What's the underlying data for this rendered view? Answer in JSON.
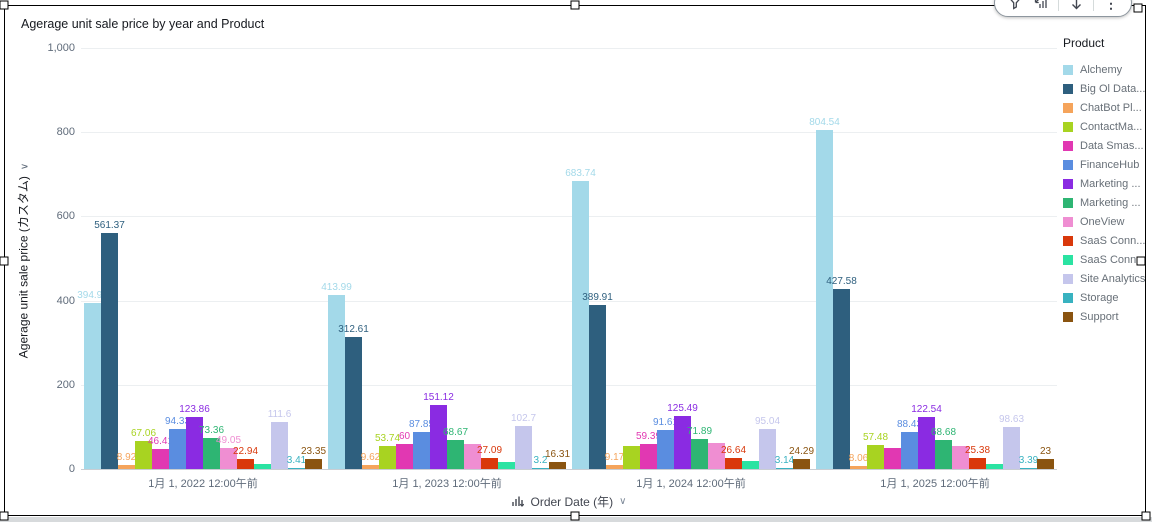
{
  "widget": {
    "title": "Agerage unit sale price by year and Product",
    "y_axis_title": "Agerage unit sale price (カスタム)",
    "x_axis_control_label": "Order Date (年)"
  },
  "toolbar": {
    "icons": [
      "filter-icon",
      "chart-arrow-icon",
      "arrow-down-icon",
      "kebab-menu-icon"
    ]
  },
  "legend": {
    "title": "Product"
  },
  "chart_data": {
    "type": "bar",
    "title": "Agerage unit sale price by year and Product",
    "xlabel": "Order Date (年)",
    "ylabel": "Agerage unit sale price (カスタム)",
    "ylim": [
      0,
      1000
    ],
    "grid": true,
    "legend_position": "right",
    "ytick_values": [
      0,
      200,
      400,
      600,
      800,
      1000
    ],
    "ytick_labels": [
      "0",
      "200",
      "400",
      "600",
      "800",
      "1,000"
    ],
    "categories": [
      "1月 1, 2022 12:00午前",
      "1月 1, 2023 12:00午前",
      "1月 1, 2024 12:00午前",
      "1月 1, 2025 12:00午前"
    ],
    "series": [
      {
        "name": "Alchemy",
        "color": "#a3d9e9",
        "values": [
          394.99,
          413.99,
          683.74,
          804.54
        ],
        "labels": [
          "394.99",
          "413.99",
          "683.74",
          "804.54"
        ]
      },
      {
        "name": "Big Ol Data...",
        "color": "#2e5f7e",
        "values": [
          561.37,
          312.61,
          389.91,
          427.58
        ],
        "labels": [
          "561.37",
          "312.61",
          "389.91",
          "427.58"
        ]
      },
      {
        "name": "ChatBot Pl...",
        "color": "#f5a45b",
        "values": [
          8.92,
          9.62,
          9.17,
          8.06
        ],
        "labels": [
          "8.92",
          "9.62",
          "9.17",
          "8.06"
        ]
      },
      {
        "name": "ContactMa...",
        "color": "#a8d321",
        "values": [
          67.06,
          53.74,
          55,
          57.48
        ],
        "labels": [
          "67.06",
          "53.74",
          "",
          "57.48"
        ]
      },
      {
        "name": "Data Smas...",
        "color": "#e138b2",
        "values": [
          46.41,
          60,
          59.39,
          51
        ],
        "labels": [
          "46.41",
          "60",
          "59.39",
          ""
        ]
      },
      {
        "name": "FinanceHub",
        "color": "#5a8de0",
        "values": [
          94.33,
          87.85,
          91.61,
          88.43
        ],
        "labels": [
          "94.33",
          "87.85",
          "91.61",
          "88.43"
        ]
      },
      {
        "name": "Marketing ...",
        "color": "#8a2be2",
        "values": [
          123.86,
          151.12,
          125.49,
          122.54
        ],
        "labels": [
          "123.86",
          "151.12",
          "125.49",
          "122.54"
        ]
      },
      {
        "name": "Marketing ...",
        "color": "#2eb573",
        "values": [
          73.36,
          68.67,
          71.89,
          68.68
        ],
        "labels": [
          "73.36",
          "68.67",
          "71.89",
          "68.68"
        ]
      },
      {
        "name": "OneView",
        "color": "#ef8ed2",
        "values": [
          49.05,
          59,
          62,
          55
        ],
        "labels": [
          "49.05",
          "",
          "",
          ""
        ]
      },
      {
        "name": "SaaS Conn...",
        "color": "#d9380b",
        "values": [
          22.94,
          27.09,
          26.64,
          25.38
        ],
        "labels": [
          "22.94",
          "27.09",
          "26.64",
          "25.38"
        ]
      },
      {
        "name": "SaaS Conn...",
        "color": "#2be3a2",
        "values": [
          13,
          17,
          19,
          12
        ],
        "labels": [
          "",
          "",
          "",
          ""
        ]
      },
      {
        "name": "Site Analytics",
        "color": "#c5c6ec",
        "values": [
          111.6,
          102.7,
          95.04,
          98.63
        ],
        "labels": [
          "111.6",
          "102.7",
          "95.04",
          "98.63"
        ]
      },
      {
        "name": "Storage",
        "color": "#38b2c0",
        "values": [
          3.41,
          3.2,
          3.14,
          3.39
        ],
        "labels": [
          "3.41",
          "3.2",
          "3.14",
          "3.39"
        ]
      },
      {
        "name": "Support",
        "color": "#8a5410",
        "values": [
          23.35,
          16.31,
          24.29,
          23
        ],
        "labels": [
          "23.35",
          "16.31",
          "24.29",
          "23"
        ]
      }
    ]
  }
}
